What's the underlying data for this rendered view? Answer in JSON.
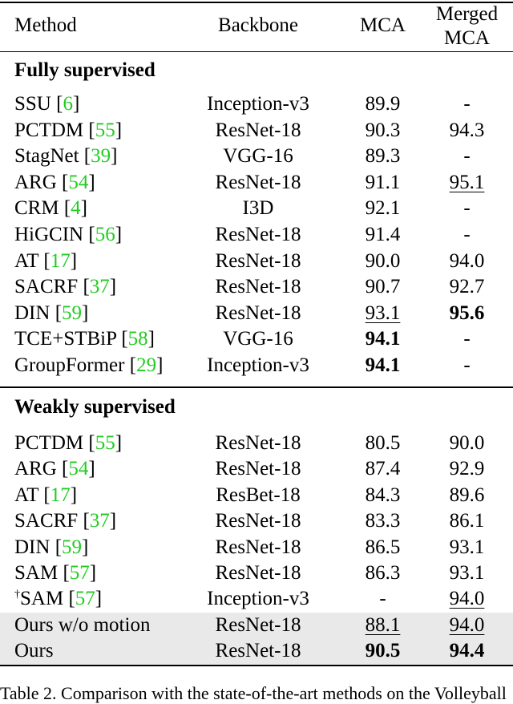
{
  "table": {
    "headers": {
      "method": "Method",
      "backbone": "Backbone",
      "mca": "MCA",
      "merged_line1": "Merged",
      "merged_line2": "MCA"
    },
    "sections": [
      {
        "title": "Fully supervised",
        "rows": [
          {
            "method": "SSU",
            "cite": "6",
            "backbone": "Inception-v3",
            "mca": "89.9",
            "merged": "-"
          },
          {
            "method": "PCTDM",
            "cite": "55",
            "backbone": "ResNet-18",
            "mca": "90.3",
            "merged": "94.3"
          },
          {
            "method": "StagNet",
            "cite": "39",
            "backbone": "VGG-16",
            "mca": "89.3",
            "merged": "-"
          },
          {
            "method": "ARG",
            "cite": "54",
            "backbone": "ResNet-18",
            "mca": "91.1",
            "merged": "95.1",
            "merged_style": "u"
          },
          {
            "method": "CRM",
            "cite": "4",
            "backbone": "I3D",
            "mca": "92.1",
            "merged": "-"
          },
          {
            "method": "HiGCIN",
            "cite": "56",
            "backbone": "ResNet-18",
            "mca": "91.4",
            "merged": "-"
          },
          {
            "method": "AT",
            "cite": "17",
            "backbone": "ResNet-18",
            "mca": "90.0",
            "merged": "94.0"
          },
          {
            "method": "SACRF",
            "cite": "37",
            "backbone": "ResNet-18",
            "mca": "90.7",
            "merged": "92.7"
          },
          {
            "method": "DIN",
            "cite": "59",
            "backbone": "ResNet-18",
            "mca": "93.1",
            "mca_style": "u",
            "merged": "95.6",
            "merged_style": "b"
          },
          {
            "method": "TCE+STBiP",
            "cite": "58",
            "backbone": "VGG-16",
            "mca": "94.1",
            "mca_style": "b",
            "merged": "-"
          },
          {
            "method": "GroupFormer",
            "cite": "29",
            "backbone": "Inception-v3",
            "mca": "94.1",
            "mca_style": "b",
            "merged": "-"
          }
        ]
      },
      {
        "title": "Weakly supervised",
        "rows": [
          {
            "method": "PCTDM",
            "cite": "55",
            "backbone": "ResNet-18",
            "mca": "80.5",
            "merged": "90.0"
          },
          {
            "method": "ARG",
            "cite": "54",
            "backbone": "ResNet-18",
            "mca": "87.4",
            "merged": "92.9"
          },
          {
            "method": "AT",
            "cite": "17",
            "backbone": "ResBet-18",
            "mca": "84.3",
            "merged": "89.6"
          },
          {
            "method": "SACRF",
            "cite": "37",
            "backbone": "ResNet-18",
            "mca": "83.3",
            "merged": "86.1"
          },
          {
            "method": "DIN",
            "cite": "59",
            "backbone": "ResNet-18",
            "mca": "86.5",
            "merged": "93.1"
          },
          {
            "method": "SAM",
            "cite": "57",
            "backbone": "ResNet-18",
            "mca": "86.3",
            "merged": "93.1"
          },
          {
            "method": "SAM",
            "sup": "†",
            "cite": "57",
            "backbone": "Inception-v3",
            "mca": "-",
            "merged": "94.0",
            "merged_style": "u"
          },
          {
            "method": "Ours w/o motion",
            "backbone": "ResNet-18",
            "mca": "88.1",
            "mca_style": "u",
            "merged": "94.0",
            "merged_style": "u",
            "shaded": true
          },
          {
            "method": "Ours",
            "backbone": "ResNet-18",
            "mca": "90.5",
            "mca_style": "b",
            "merged": "94.4",
            "merged_style": "b",
            "shaded": true
          }
        ]
      }
    ]
  },
  "caption": "Table 2. Comparison with the state-of-the-art methods on the Volleyball"
}
